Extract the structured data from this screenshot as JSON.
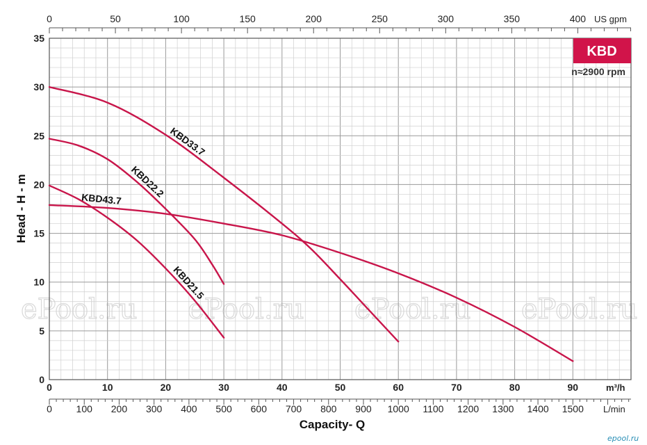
{
  "chart_data": {
    "type": "line",
    "ylabel": "Head - H - m",
    "xlabel": "Capacity- Q",
    "x_unit_m3h": "m³/h",
    "x_unit_gpm": "US gpm",
    "x_unit_lmin": "L/min",
    "ylim": [
      0,
      35
    ],
    "xlim_m3h": [
      0,
      100
    ],
    "yticks": [
      "0",
      "5",
      "10",
      "15",
      "20",
      "25",
      "30",
      "35"
    ],
    "xticks_m3h": [
      "0",
      "10",
      "20",
      "30",
      "40",
      "50",
      "60",
      "70",
      "80",
      "90"
    ],
    "xticks_gpm": [
      "0",
      "50",
      "100",
      "150",
      "200",
      "250",
      "300",
      "350",
      "400"
    ],
    "xticks_lmin": [
      "0",
      "100",
      "200",
      "300",
      "400",
      "500",
      "600",
      "700",
      "800",
      "900",
      "1000",
      "1100",
      "1200",
      "1300",
      "1400",
      "1500"
    ],
    "grid": true,
    "series": [
      {
        "name": "KBD33.7",
        "x": [
          0,
          10,
          20,
          30,
          40,
          45,
          50,
          55,
          60
        ],
        "y": [
          30,
          28.4,
          25.1,
          20.7,
          16,
          13.4,
          10.3,
          7.1,
          3.9
        ]
      },
      {
        "name": "KBD22.2",
        "x": [
          0,
          5,
          10,
          15,
          20,
          25,
          28,
          30
        ],
        "y": [
          24.7,
          24,
          22.6,
          20.3,
          17.5,
          14.4,
          11.8,
          9.8
        ]
      },
      {
        "name": "KBD43.7",
        "x": [
          0,
          10,
          20,
          30,
          40,
          50,
          60,
          70,
          80,
          90
        ],
        "y": [
          17.9,
          17.6,
          17.0,
          16.0,
          14.8,
          13.0,
          10.9,
          8.4,
          5.4,
          1.9
        ]
      },
      {
        "name": "KBD21.5",
        "x": [
          0,
          5,
          10,
          15,
          20,
          25,
          30
        ],
        "y": [
          19.9,
          18.5,
          16.6,
          14.3,
          11.4,
          8.1,
          4.3
        ]
      }
    ],
    "line_color": "#c8154a"
  },
  "badge": {
    "label": "KBD",
    "color": "#d1144a"
  },
  "speed_label": "n≈2900 rpm",
  "watermark": "ePool.ru",
  "logo": "epool.ru"
}
